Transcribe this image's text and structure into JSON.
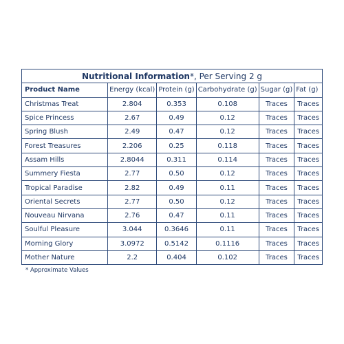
{
  "table": {
    "title": "Nutritional Information",
    "title_suffix": "*, Per Serving 2 g",
    "header": [
      "Product Name",
      "Energy (kcal)",
      "Protein (g)",
      "Carbohydrate (g)",
      "Sugar (g)",
      "Fat (g)"
    ],
    "rows": [
      [
        "Christmas Treat",
        "2.804",
        "0.353",
        "0.108",
        "Traces",
        "Traces"
      ],
      [
        "Spice Princess",
        "2.67",
        "0.49",
        "0.12",
        "Traces",
        "Traces"
      ],
      [
        "Spring Blush",
        "2.49",
        "0.47",
        "0.12",
        "Traces",
        "Traces"
      ],
      [
        "Forest Treasures",
        "2.206",
        "0.25",
        "0.118",
        "Traces",
        "Traces"
      ],
      [
        "Assam Hills",
        "2.8044",
        "0.311",
        "0.114",
        "Traces",
        "Traces"
      ],
      [
        "Summery Fiesta",
        "2.77",
        "0.50",
        "0.12",
        "Traces",
        "Traces"
      ],
      [
        "Tropical Paradise",
        "2.82",
        "0.49",
        "0.11",
        "Traces",
        "Traces"
      ],
      [
        "Oriental Secrets",
        "2.77",
        "0.50",
        "0.12",
        "Traces",
        "Traces"
      ],
      [
        "Nouveau Nirvana",
        "2.76",
        "0.47",
        "0.11",
        "Traces",
        "Traces"
      ],
      [
        "Soulful Pleasure",
        "3.044",
        "0.3646",
        "0.11",
        "Traces",
        "Traces"
      ],
      [
        "Morning Glory",
        "3.0972",
        "0.5142",
        "0.1116",
        "Traces",
        "Traces"
      ],
      [
        "Mother Nature",
        "2.2",
        "0.404",
        "0.102",
        "Traces",
        "Traces"
      ]
    ],
    "footnote": "* Approximate Values"
  }
}
